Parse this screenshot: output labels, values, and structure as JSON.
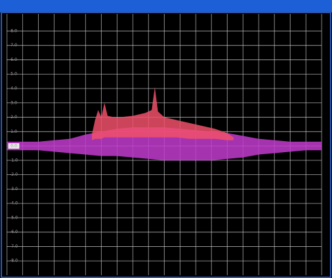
{
  "chart_data": {
    "type": "range_area",
    "xlim": [
      0,
      100
    ],
    "ylim": [
      -9,
      9.2
    ],
    "xticks": [
      0,
      5,
      10,
      15,
      20,
      25,
      30,
      35,
      40,
      45,
      50,
      55,
      60,
      65,
      70,
      75,
      80,
      85,
      90,
      95,
      100
    ],
    "yticks": [
      {
        "value": 8,
        "label": "8.0"
      },
      {
        "value": 7,
        "label": "7.0"
      },
      {
        "value": 6,
        "label": "6.0"
      },
      {
        "value": 5,
        "label": "5.0"
      },
      {
        "value": 4,
        "label": "4.0"
      },
      {
        "value": 3,
        "label": "3.0"
      },
      {
        "value": 2,
        "label": "2.0"
      },
      {
        "value": 1,
        "label": "1.0"
      },
      {
        "value": 0,
        "label": "0.0"
      },
      {
        "value": -1,
        "label": "-1.0"
      },
      {
        "value": -2,
        "label": "-2.0"
      },
      {
        "value": -3,
        "label": "-3.0"
      },
      {
        "value": -4,
        "label": "-4.0"
      },
      {
        "value": -5,
        "label": "-5.0"
      },
      {
        "value": -6,
        "label": "-6.0"
      },
      {
        "value": -7,
        "label": "-7.0"
      },
      {
        "value": -8,
        "label": "-8.0"
      }
    ],
    "grid": true,
    "series": [
      {
        "color": "#c23ccf",
        "x": [
          0,
          5,
          10,
          15,
          20,
          25,
          30,
          35,
          40,
          45,
          50,
          55,
          60,
          65,
          70,
          75,
          80,
          85,
          90,
          95,
          100
        ],
        "upper": [
          0.3,
          0.3,
          0.3,
          0.4,
          0.5,
          0.8,
          1.0,
          1.2,
          1.3,
          1.3,
          1.3,
          1.2,
          1.1,
          1.0,
          0.9,
          0.7,
          0.5,
          0.4,
          0.3,
          0.3,
          0.3
        ],
        "lower": [
          -0.3,
          -0.3,
          -0.3,
          -0.4,
          -0.5,
          -0.6,
          -0.7,
          -0.7,
          -0.8,
          -0.9,
          -1.0,
          -1.0,
          -1.0,
          -1.0,
          -0.9,
          -0.8,
          -0.6,
          -0.5,
          -0.4,
          -0.3,
          -0.3
        ]
      },
      {
        "color": "#f0506a",
        "x": [
          27,
          28,
          29,
          30,
          31,
          32,
          34,
          36,
          40,
          44,
          46,
          47,
          48,
          50,
          54,
          58,
          62,
          66,
          70,
          72
        ],
        "upper": [
          0.8,
          1.8,
          2.5,
          2.0,
          3.0,
          2.1,
          2.0,
          2.0,
          2.1,
          2.3,
          2.5,
          4.1,
          2.4,
          2.0,
          1.8,
          1.6,
          1.4,
          1.2,
          0.9,
          0.6
        ],
        "lower": [
          0.4,
          0.5,
          0.5,
          0.5,
          0.6,
          0.6,
          0.6,
          0.6,
          0.6,
          0.6,
          0.6,
          0.6,
          0.6,
          0.6,
          0.6,
          0.5,
          0.5,
          0.5,
          0.4,
          0.4
        ]
      }
    ]
  }
}
